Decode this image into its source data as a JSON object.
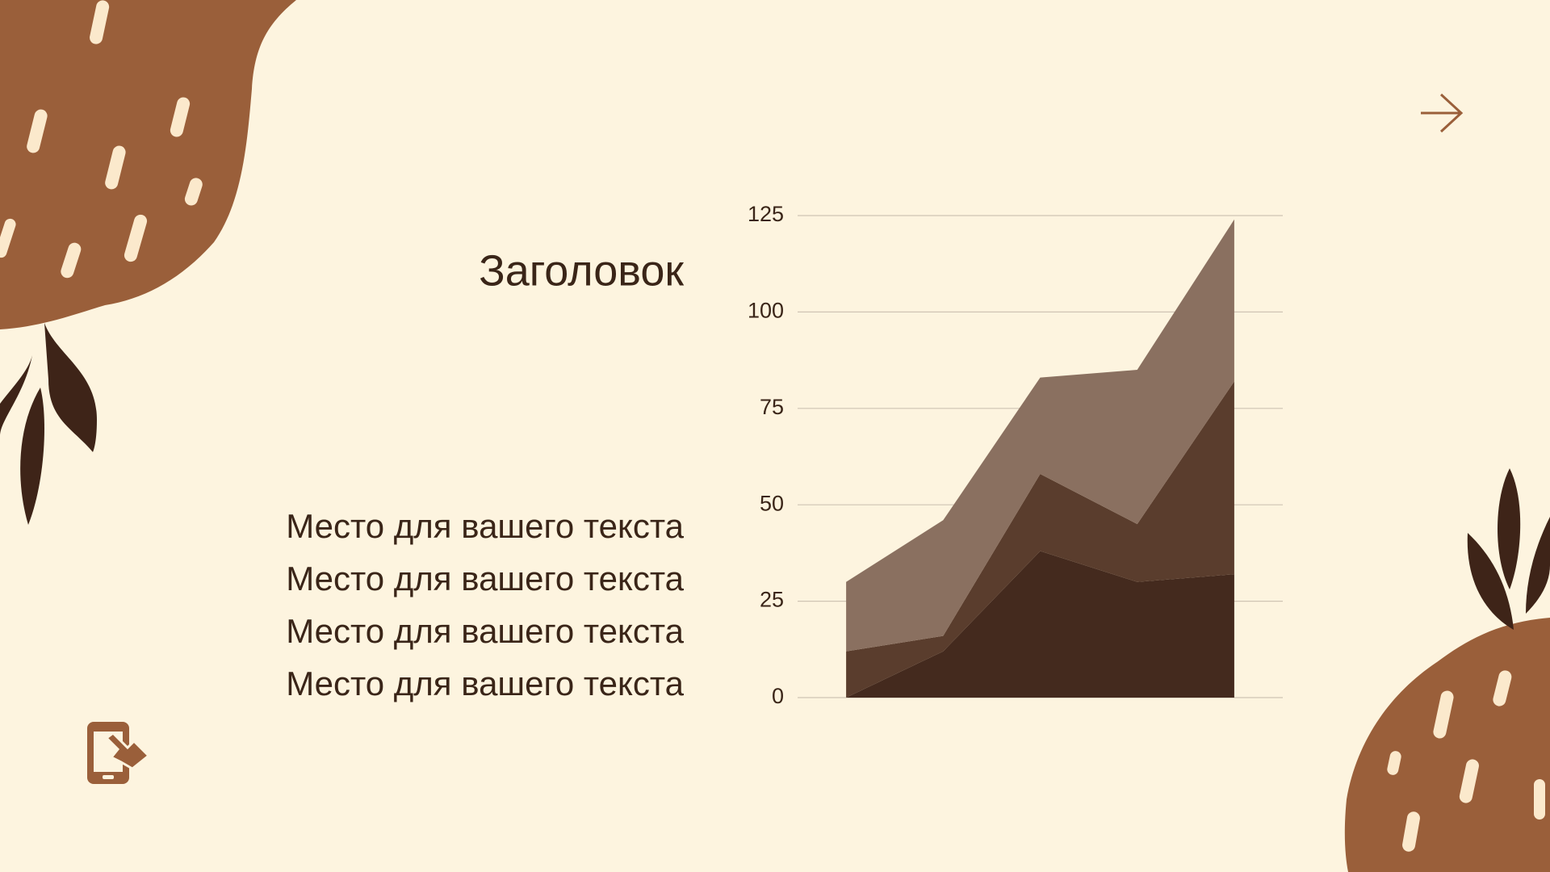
{
  "slide": {
    "title": "Заголовок",
    "lines": [
      "Место для вашего текста",
      "Место для вашего текста",
      "Место для вашего текста",
      "Место для вашего текста"
    ]
  },
  "chart_data": {
    "type": "stacked-area",
    "categories": [
      null,
      null,
      null,
      null,
      null
    ],
    "series": [
      {
        "color": "#442a1e",
        "values": [
          0,
          12,
          38,
          30,
          32
        ]
      },
      {
        "color": "#5a3d2d",
        "values": [
          12,
          4,
          20,
          15,
          50
        ]
      },
      {
        "color": "#8a7060",
        "values": [
          18,
          30,
          25,
          40,
          42
        ]
      }
    ],
    "ylim": [
      0,
      125
    ],
    "yticks": [
      0,
      25,
      50,
      75,
      100,
      125
    ],
    "grid": true
  }
}
